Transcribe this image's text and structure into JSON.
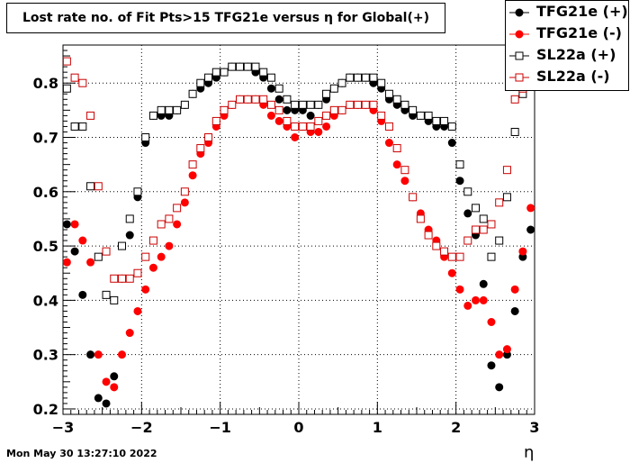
{
  "chart_data": {
    "type": "scatter",
    "title": "Lost rate no. of Fit Pts>15 TFG21e versus η for Global(+)",
    "xlabel": "η",
    "ylabel": "",
    "xlim": [
      -3,
      3
    ],
    "ylim": [
      0.19,
      0.87
    ],
    "grid": true,
    "legend_position": "top-right",
    "x_ticks": [
      "−3",
      "−2",
      "−1",
      "0",
      "1",
      "2",
      "3"
    ],
    "y_ticks": [
      "0.2",
      "0.3",
      "0.4",
      "0.5",
      "0.6",
      "0.7",
      "0.8"
    ],
    "series": [
      {
        "name": "TFG21e (+)",
        "marker": "filled-circle",
        "color": "#000000",
        "x": [
          -2.95,
          -2.85,
          -2.75,
          -2.65,
          -2.55,
          -2.45,
          -2.35,
          -2.25,
          -2.15,
          -2.05,
          -1.95,
          -1.85,
          -1.75,
          -1.65,
          -1.55,
          -1.45,
          -1.35,
          -1.25,
          -1.15,
          -1.05,
          -0.95,
          -0.85,
          -0.75,
          -0.65,
          -0.55,
          -0.45,
          -0.35,
          -0.25,
          -0.15,
          -0.05,
          0.05,
          0.15,
          0.25,
          0.35,
          0.45,
          0.55,
          0.65,
          0.75,
          0.85,
          0.95,
          1.05,
          1.15,
          1.25,
          1.35,
          1.45,
          1.55,
          1.65,
          1.75,
          1.85,
          1.95,
          2.05,
          2.15,
          2.25,
          2.35,
          2.45,
          2.55,
          2.65,
          2.75,
          2.85,
          2.95
        ],
        "y": [
          0.54,
          0.49,
          0.41,
          0.3,
          0.22,
          0.21,
          0.26,
          0.44,
          0.52,
          0.59,
          0.69,
          0.74,
          0.74,
          0.74,
          0.75,
          0.76,
          0.78,
          0.79,
          0.8,
          0.81,
          0.82,
          0.83,
          0.83,
          0.83,
          0.82,
          0.81,
          0.79,
          0.77,
          0.75,
          0.75,
          0.75,
          0.74,
          0.76,
          0.77,
          0.79,
          0.8,
          0.81,
          0.81,
          0.81,
          0.8,
          0.79,
          0.77,
          0.76,
          0.75,
          0.74,
          0.74,
          0.73,
          0.72,
          0.72,
          0.69,
          0.62,
          0.56,
          0.52,
          0.43,
          0.28,
          0.24,
          0.3,
          0.38,
          0.48,
          0.53
        ]
      },
      {
        "name": "TFG21e (-)",
        "marker": "filled-circle",
        "color": "#ff0000",
        "x": [
          -2.95,
          -2.85,
          -2.75,
          -2.65,
          -2.55,
          -2.45,
          -2.35,
          -2.25,
          -2.15,
          -2.05,
          -1.95,
          -1.85,
          -1.75,
          -1.65,
          -1.55,
          -1.45,
          -1.35,
          -1.25,
          -1.15,
          -1.05,
          -0.95,
          -0.85,
          -0.75,
          -0.65,
          -0.55,
          -0.45,
          -0.35,
          -0.25,
          -0.15,
          -0.05,
          0.05,
          0.15,
          0.25,
          0.35,
          0.45,
          0.55,
          0.65,
          0.75,
          0.85,
          0.95,
          1.05,
          1.15,
          1.25,
          1.35,
          1.45,
          1.55,
          1.65,
          1.75,
          1.85,
          1.95,
          2.05,
          2.15,
          2.25,
          2.35,
          2.45,
          2.55,
          2.65,
          2.75,
          2.85,
          2.95
        ],
        "y": [
          0.47,
          0.54,
          0.51,
          0.47,
          0.3,
          0.25,
          0.24,
          0.3,
          0.34,
          0.38,
          0.42,
          0.46,
          0.48,
          0.5,
          0.54,
          0.58,
          0.63,
          0.67,
          0.69,
          0.72,
          0.74,
          0.76,
          0.77,
          0.77,
          0.77,
          0.76,
          0.74,
          0.73,
          0.72,
          0.7,
          0.72,
          0.71,
          0.71,
          0.72,
          0.74,
          0.75,
          0.76,
          0.76,
          0.76,
          0.75,
          0.73,
          0.69,
          0.65,
          0.62,
          0.59,
          0.56,
          0.53,
          0.51,
          0.48,
          0.45,
          0.42,
          0.39,
          0.4,
          0.4,
          0.36,
          0.3,
          0.31,
          0.42,
          0.49,
          0.57
        ]
      },
      {
        "name": "SL22a (+)",
        "marker": "open-square",
        "color": "#000000",
        "x": [
          -2.95,
          -2.85,
          -2.75,
          -2.65,
          -2.55,
          -2.45,
          -2.35,
          -2.25,
          -2.15,
          -2.05,
          -1.95,
          -1.85,
          -1.75,
          -1.65,
          -1.55,
          -1.45,
          -1.35,
          -1.25,
          -1.15,
          -1.05,
          -0.95,
          -0.85,
          -0.75,
          -0.65,
          -0.55,
          -0.45,
          -0.35,
          -0.25,
          -0.15,
          -0.05,
          0.05,
          0.15,
          0.25,
          0.35,
          0.45,
          0.55,
          0.65,
          0.75,
          0.85,
          0.95,
          1.05,
          1.15,
          1.25,
          1.35,
          1.45,
          1.55,
          1.65,
          1.75,
          1.85,
          1.95,
          2.05,
          2.15,
          2.25,
          2.35,
          2.45,
          2.55,
          2.65,
          2.75,
          2.85,
          2.95
        ],
        "y": [
          0.79,
          0.72,
          0.72,
          0.61,
          0.48,
          0.41,
          0.4,
          0.5,
          0.55,
          0.6,
          0.7,
          0.74,
          0.75,
          0.75,
          0.75,
          0.76,
          0.78,
          0.8,
          0.81,
          0.82,
          0.82,
          0.83,
          0.83,
          0.83,
          0.83,
          0.82,
          0.81,
          0.79,
          0.77,
          0.76,
          0.76,
          0.76,
          0.76,
          0.78,
          0.79,
          0.8,
          0.81,
          0.81,
          0.81,
          0.81,
          0.8,
          0.78,
          0.77,
          0.76,
          0.75,
          0.74,
          0.74,
          0.73,
          0.73,
          0.72,
          0.65,
          0.6,
          0.57,
          0.55,
          0.48,
          0.51,
          0.59,
          0.71,
          0.78,
          0.8
        ]
      },
      {
        "name": "SL22a (-)",
        "marker": "open-square",
        "color": "#cc0000",
        "x": [
          -2.95,
          -2.85,
          -2.75,
          -2.65,
          -2.55,
          -2.45,
          -2.35,
          -2.25,
          -2.15,
          -2.05,
          -1.95,
          -1.85,
          -1.75,
          -1.65,
          -1.55,
          -1.45,
          -1.35,
          -1.25,
          -1.15,
          -1.05,
          -0.95,
          -0.85,
          -0.75,
          -0.65,
          -0.55,
          -0.45,
          -0.35,
          -0.25,
          -0.15,
          -0.05,
          0.05,
          0.15,
          0.25,
          0.35,
          0.45,
          0.55,
          0.65,
          0.75,
          0.85,
          0.95,
          1.05,
          1.15,
          1.25,
          1.35,
          1.45,
          1.55,
          1.65,
          1.75,
          1.85,
          1.95,
          2.05,
          2.15,
          2.25,
          2.35,
          2.45,
          2.55,
          2.65,
          2.75,
          2.85,
          2.95
        ],
        "y": [
          0.84,
          0.81,
          0.8,
          0.74,
          0.61,
          0.49,
          0.44,
          0.44,
          0.44,
          0.45,
          0.48,
          0.51,
          0.54,
          0.55,
          0.57,
          0.6,
          0.65,
          0.68,
          0.7,
          0.73,
          0.75,
          0.76,
          0.77,
          0.77,
          0.77,
          0.77,
          0.76,
          0.75,
          0.73,
          0.72,
          0.72,
          0.72,
          0.73,
          0.74,
          0.75,
          0.75,
          0.76,
          0.76,
          0.76,
          0.76,
          0.74,
          0.72,
          0.68,
          0.64,
          0.59,
          0.55,
          0.52,
          0.5,
          0.49,
          0.48,
          0.48,
          0.51,
          0.53,
          0.53,
          0.54,
          0.58,
          0.64,
          0.77,
          0.79,
          0.8
        ]
      }
    ]
  },
  "footer_timestamp": "Mon May 30 13:27:10 2022"
}
